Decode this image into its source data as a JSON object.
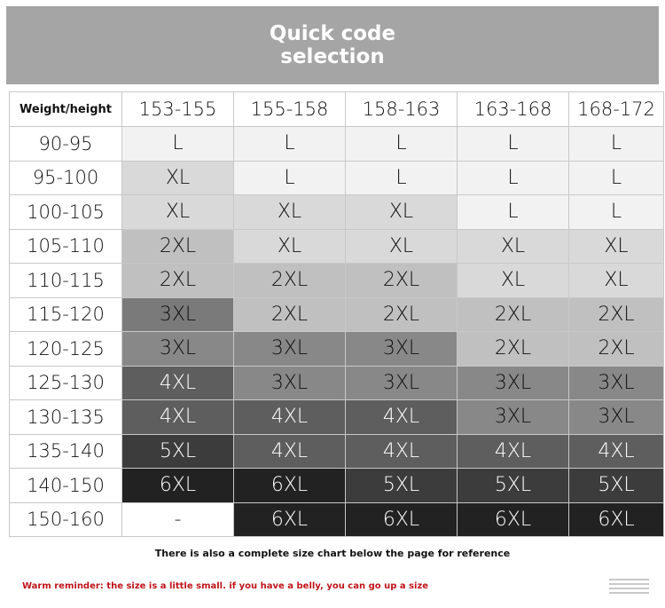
{
  "banner": {
    "title": "Quick code selection"
  },
  "table": {
    "corner_label": "Weight/height",
    "columns": [
      "153-155",
      "155-158",
      "158-163",
      "163-168",
      "168-172"
    ],
    "rows": [
      {
        "weight": "90-95",
        "sizes": [
          "L",
          "L",
          "L",
          "L",
          "L"
        ]
      },
      {
        "weight": "95-100",
        "sizes": [
          "XL",
          "L",
          "L",
          "L",
          "L"
        ]
      },
      {
        "weight": "100-105",
        "sizes": [
          "XL",
          "XL",
          "XL",
          "L",
          "L"
        ]
      },
      {
        "weight": "105-110",
        "sizes": [
          "2XL",
          "XL",
          "XL",
          "XL",
          "XL"
        ]
      },
      {
        "weight": "110-115",
        "sizes": [
          "2XL",
          "2XL",
          "2XL",
          "XL",
          "XL"
        ]
      },
      {
        "weight": "115-120",
        "sizes": [
          "3XL",
          "2XL",
          "2XL",
          "2XL",
          "2XL"
        ]
      },
      {
        "weight": "120-125",
        "sizes": [
          "3XL",
          "3XL",
          "3XL",
          "2XL",
          "2XL"
        ]
      },
      {
        "weight": "125-130",
        "sizes": [
          "4XL",
          "3XL",
          "3XL",
          "3XL",
          "3XL"
        ]
      },
      {
        "weight": "130-135",
        "sizes": [
          "4XL",
          "4XL",
          "4XL",
          "3XL",
          "3XL"
        ]
      },
      {
        "weight": "135-140",
        "sizes": [
          "5XL",
          "4XL",
          "4XL",
          "4XL",
          "4XL"
        ]
      },
      {
        "weight": "140-150",
        "sizes": [
          "6XL",
          "6XL",
          "5XL",
          "5XL",
          "5XL"
        ]
      },
      {
        "weight": "150-160",
        "sizes": [
          "-",
          "6XL",
          "6XL",
          "6XL",
          "6XL"
        ]
      }
    ],
    "size_colors": {
      "L": "#f2f2f2",
      "XL": "#d9d9d9",
      "2XL": "#c0c0c0",
      "3XL": "#888888",
      "4XL": "#5e5e5e",
      "5XL": "#3c3c3c",
      "6XL": "#222222",
      "-": "#ffffff"
    },
    "light_text_sizes": [
      "4XL",
      "5XL",
      "6XL"
    ]
  },
  "note": "There is also a complete size chart below the page for reference",
  "warning": "Warm reminder: the size is a little small. if you have a belly, you can go up a size",
  "warning_color": "#c0141a"
}
